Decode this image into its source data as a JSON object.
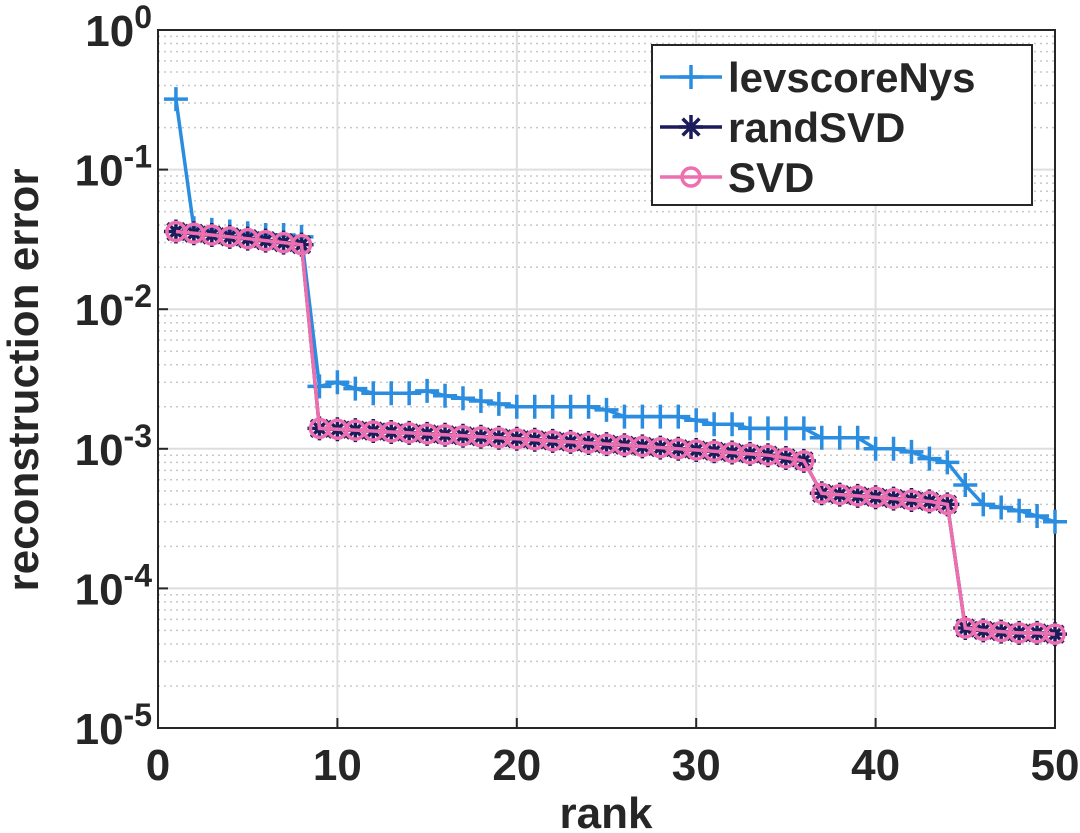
{
  "chart_data": {
    "type": "line",
    "xlabel": "rank",
    "ylabel": "reconstruction error",
    "x": [
      1,
      2,
      3,
      4,
      5,
      6,
      7,
      8,
      9,
      10,
      11,
      12,
      13,
      14,
      15,
      16,
      17,
      18,
      19,
      20,
      21,
      22,
      23,
      24,
      25,
      26,
      27,
      28,
      29,
      30,
      31,
      32,
      33,
      34,
      35,
      36,
      37,
      38,
      39,
      40,
      41,
      42,
      43,
      44,
      45,
      46,
      47,
      48,
      49,
      50
    ],
    "xlim": [
      0,
      50
    ],
    "xticks": [
      0,
      10,
      20,
      30,
      40,
      50
    ],
    "ylim": [
      1e-05,
      1
    ],
    "log_y": true,
    "grid": true,
    "minor_grid": true,
    "legend_position": "upper right",
    "yticks": [
      {
        "value": 1e-05,
        "label": "10^-5"
      },
      {
        "value": 0.0001,
        "label": "10^-4"
      },
      {
        "value": 0.001,
        "label": "10^-3"
      },
      {
        "value": 0.01,
        "label": "10^-2"
      },
      {
        "value": 0.1,
        "label": "10^-1"
      },
      {
        "value": 1,
        "label": "10^0"
      }
    ],
    "series": [
      {
        "name": "levscoreNys",
        "color": "#2b8de0",
        "marker": "plus",
        "values": [
          0.32,
          0.038,
          0.037,
          0.036,
          0.035,
          0.034,
          0.034,
          0.033,
          0.0028,
          0.003,
          0.0027,
          0.0025,
          0.0025,
          0.0025,
          0.0026,
          0.0024,
          0.0023,
          0.0022,
          0.0021,
          0.002,
          0.002,
          0.002,
          0.002,
          0.002,
          0.0019,
          0.0017,
          0.0017,
          0.0017,
          0.0017,
          0.0016,
          0.0015,
          0.0015,
          0.0014,
          0.0014,
          0.0014,
          0.0014,
          0.0012,
          0.0012,
          0.0012,
          0.001,
          0.001,
          0.00095,
          0.00085,
          0.0008,
          0.00055,
          0.0004,
          0.00038,
          0.00036,
          0.00033,
          0.0003
        ]
      },
      {
        "name": "randSVD",
        "color": "#1c1c5c",
        "marker": "star",
        "values": [
          0.036,
          0.035,
          0.034,
          0.033,
          0.032,
          0.031,
          0.03,
          0.029,
          0.0014,
          0.00138,
          0.00136,
          0.00134,
          0.00132,
          0.0013,
          0.00128,
          0.00126,
          0.00124,
          0.00122,
          0.0012,
          0.00118,
          0.00116,
          0.00114,
          0.00112,
          0.0011,
          0.00108,
          0.00106,
          0.00104,
          0.00102,
          0.001,
          0.00098,
          0.00096,
          0.00094,
          0.00092,
          0.0009,
          0.00086,
          0.00082,
          0.00048,
          0.00047,
          0.00046,
          0.00045,
          0.00044,
          0.00043,
          0.00042,
          0.0004,
          5.2e-05,
          5e-05,
          4.9e-05,
          4.8e-05,
          4.8e-05,
          4.7e-05
        ]
      },
      {
        "name": "SVD",
        "color": "#ee6fb0",
        "marker": "circle",
        "values": [
          0.036,
          0.035,
          0.034,
          0.033,
          0.032,
          0.031,
          0.03,
          0.029,
          0.0014,
          0.00138,
          0.00136,
          0.00134,
          0.00132,
          0.0013,
          0.00128,
          0.00126,
          0.00124,
          0.00122,
          0.0012,
          0.00118,
          0.00116,
          0.00114,
          0.00112,
          0.0011,
          0.00108,
          0.00106,
          0.00104,
          0.00102,
          0.001,
          0.00098,
          0.00096,
          0.00094,
          0.00092,
          0.0009,
          0.00086,
          0.00082,
          0.00048,
          0.00047,
          0.00046,
          0.00045,
          0.00044,
          0.00043,
          0.00042,
          0.0004,
          5.2e-05,
          5e-05,
          4.9e-05,
          4.8e-05,
          4.8e-05,
          4.7e-05
        ]
      }
    ]
  }
}
